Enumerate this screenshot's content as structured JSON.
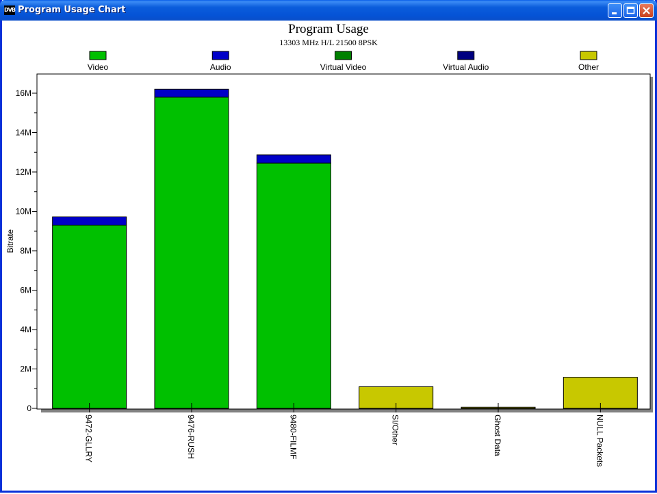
{
  "window": {
    "title": "Program Usage Chart",
    "icon_text": "DVB"
  },
  "chart_data": {
    "type": "bar",
    "stacked": true,
    "title": "Program Usage",
    "subtitle": "13303 MHz H/L 21500 8PSK",
    "ylabel": "Bitrate",
    "xlabel": "",
    "ylim": [
      0,
      17000000
    ],
    "yticks": [
      0,
      2000000,
      4000000,
      6000000,
      8000000,
      10000000,
      12000000,
      14000000,
      16000000
    ],
    "ytick_labels": [
      "0",
      "2M",
      "4M",
      "6M",
      "8M",
      "10M",
      "12M",
      "14M",
      "16M"
    ],
    "categories": [
      "9472-GLLRY",
      "9476-RUSH",
      "9480-FILMF",
      "SI/Other",
      "Ghost Data",
      "NULL Packets"
    ],
    "legend_placement": "top",
    "series": [
      {
        "name": "Video",
        "color": "#00c000",
        "values": [
          9300000,
          15800000,
          12450000,
          0,
          0,
          0
        ]
      },
      {
        "name": "Audio",
        "color": "#0000c8",
        "values": [
          420000,
          400000,
          420000,
          0,
          0,
          0
        ]
      },
      {
        "name": "Virtual Video",
        "color": "#008000",
        "values": [
          0,
          0,
          0,
          0,
          0,
          0
        ]
      },
      {
        "name": "Virtual Audio",
        "color": "#000080",
        "values": [
          0,
          0,
          0,
          0,
          0,
          0
        ]
      },
      {
        "name": "Other",
        "color": "#c8c800",
        "values": [
          0,
          0,
          0,
          1100000,
          60000,
          1580000
        ]
      }
    ]
  }
}
